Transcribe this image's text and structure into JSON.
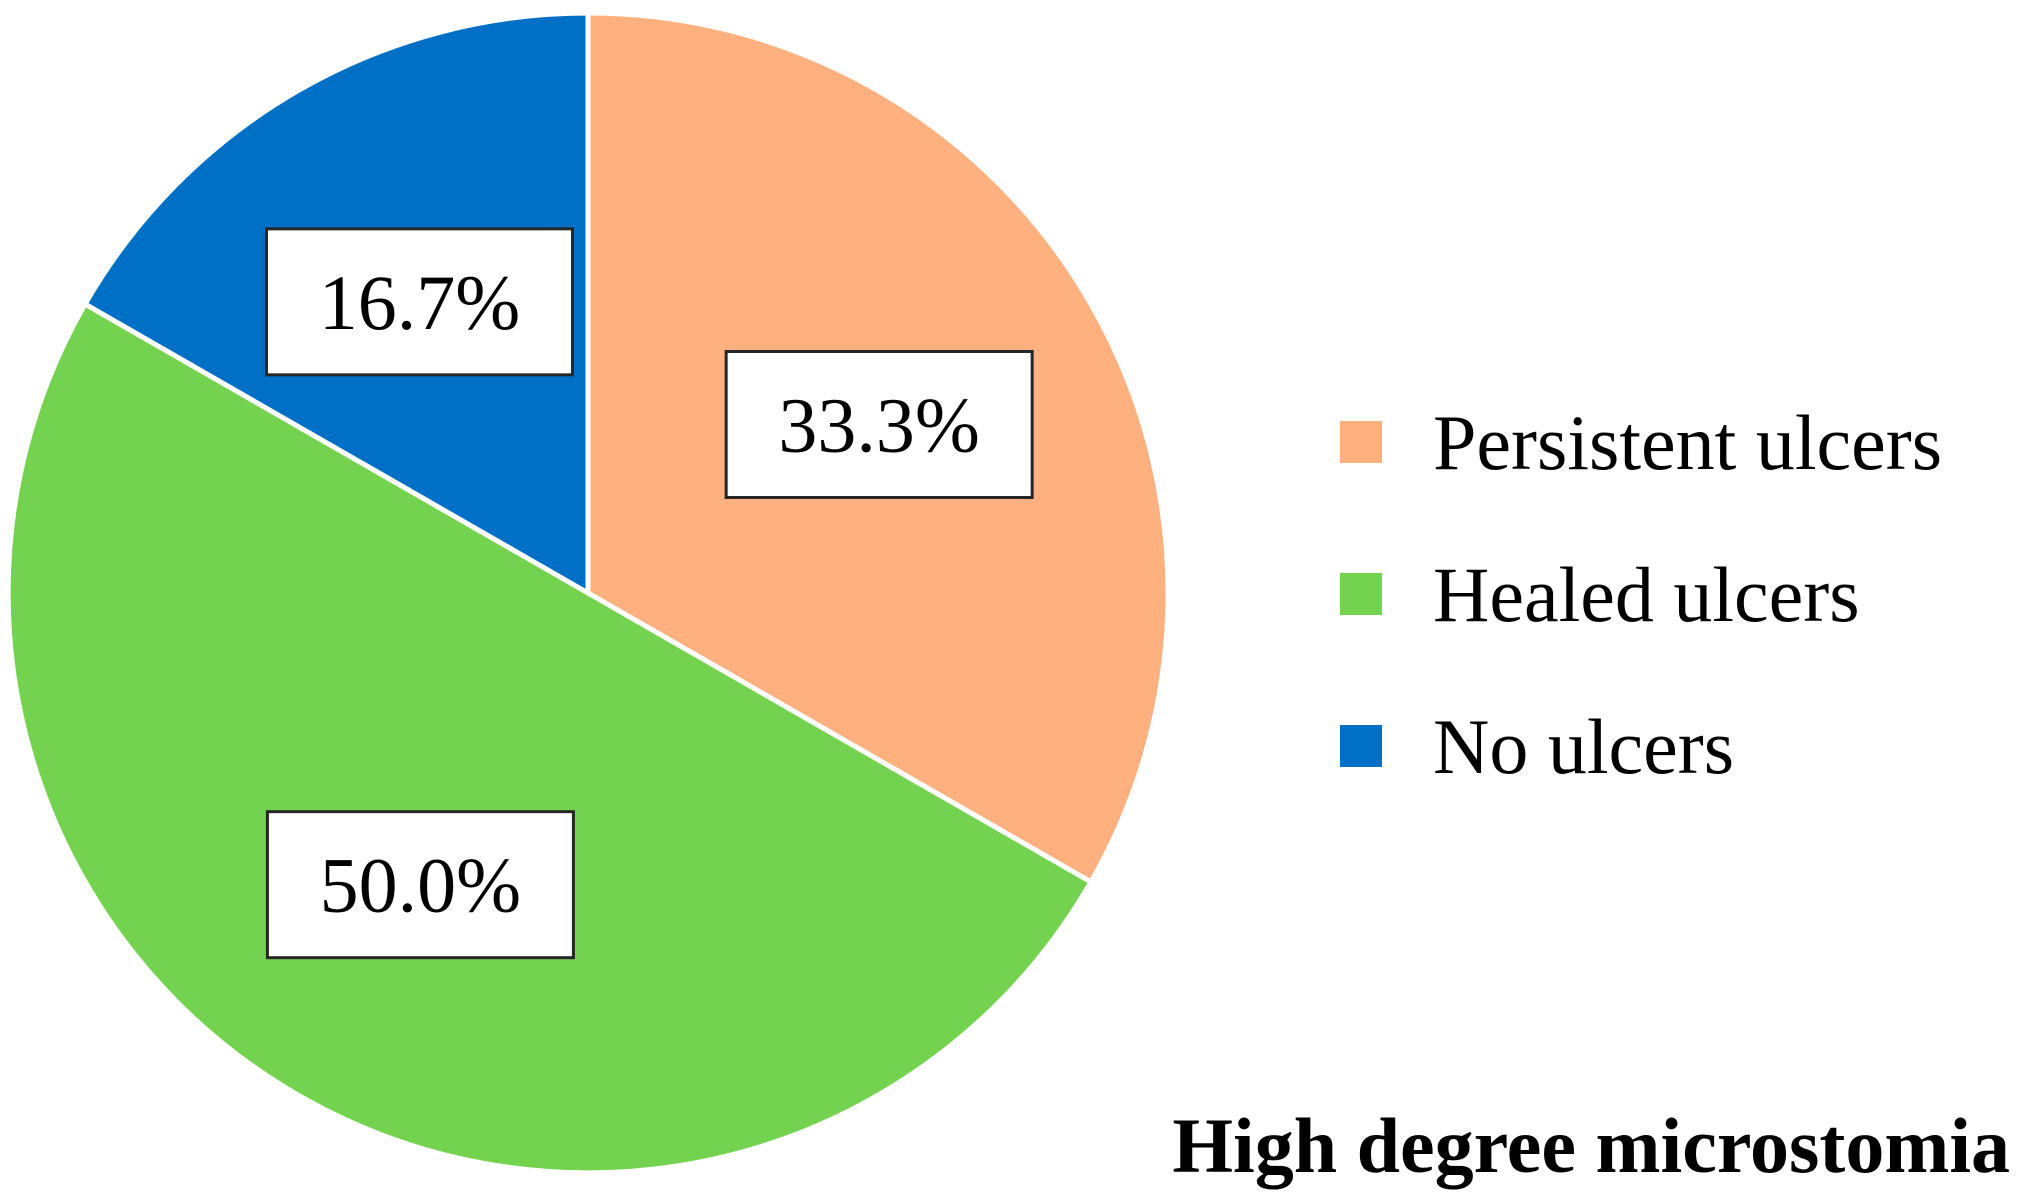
{
  "chart_data": {
    "type": "pie",
    "title": "High degree microstomia",
    "legend_position": "right",
    "slices": [
      {
        "label": "Persistent ulcers",
        "value": 33.3,
        "display": "33.3%",
        "color": "#FFB07F"
      },
      {
        "label": "Healed ulcers",
        "value": 50.0,
        "display": "50.0%",
        "color": "#74D34E"
      },
      {
        "label": "No ulcers",
        "value": 16.7,
        "display": "16.7%",
        "color": "#0070C6"
      }
    ]
  }
}
